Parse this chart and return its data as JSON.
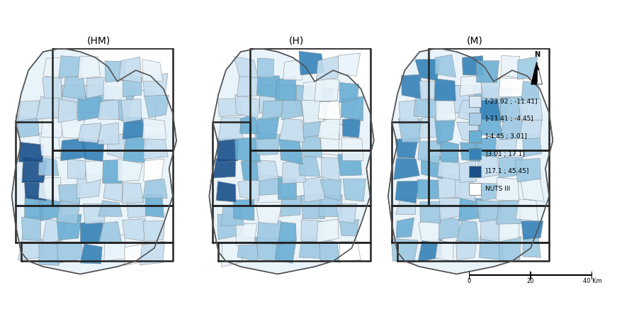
{
  "title_hm": "(HM)",
  "title_h": "(H)",
  "title_m": "(M)",
  "legend_labels": [
    "[-23.92 ; -11.41]",
    "]-11.41 ; -4.45]",
    "]-4.45 ; 3.01]",
    "]3.01 ; 17.1]",
    "]17.1 ; 45.45]",
    "NUTS III"
  ],
  "legend_colors": [
    "#d6e8f5",
    "#aacfe6",
    "#6aafd4",
    "#3482b8",
    "#1a4f8a",
    "#ffffff"
  ],
  "legend_edgecolors": [
    "#888888",
    "#888888",
    "#888888",
    "#888888",
    "#888888",
    "#888888"
  ],
  "background_color": "#ffffff",
  "map_edge_color": "#555555",
  "map_face_color_default": "#c8dff0",
  "scale_bar_label": "0    20   40 Km",
  "north_label": "N",
  "fig_width": 8.71,
  "fig_height": 4.57
}
